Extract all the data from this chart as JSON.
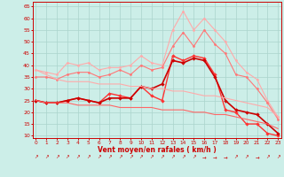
{
  "xlabel": "Vent moyen/en rafales ( km/h )",
  "background_color": "#cceee8",
  "grid_color": "#aad4cc",
  "yticks": [
    10,
    15,
    20,
    25,
    30,
    35,
    40,
    45,
    50,
    55,
    60,
    65
  ],
  "xticks": [
    0,
    1,
    2,
    3,
    4,
    5,
    6,
    7,
    8,
    9,
    10,
    11,
    12,
    13,
    14,
    15,
    16,
    17,
    18,
    19,
    20,
    21,
    22,
    23
  ],
  "ylim": [
    9,
    67
  ],
  "xlim": [
    -0.3,
    23.3
  ],
  "series": [
    {
      "color": "#ffaaaa",
      "linewidth": 0.8,
      "marker": "o",
      "markersize": 2.0,
      "y": [
        38,
        37,
        36,
        41,
        40,
        41,
        38,
        39,
        39,
        40,
        44,
        41,
        40,
        55,
        63,
        55,
        60,
        55,
        50,
        42,
        37,
        34,
        25,
        18
      ]
    },
    {
      "color": "#ff7777",
      "linewidth": 0.8,
      "marker": "o",
      "markersize": 2.0,
      "y": [
        35,
        35,
        34,
        36,
        37,
        37,
        35,
        36,
        38,
        36,
        40,
        38,
        39,
        48,
        54,
        48,
        55,
        49,
        45,
        36,
        35,
        30,
        24,
        17
      ]
    },
    {
      "color": "#ff3333",
      "linewidth": 1.0,
      "marker": "D",
      "markersize": 2.2,
      "y": [
        25,
        24,
        24,
        25,
        26,
        25,
        24,
        28,
        27,
        26,
        31,
        27,
        25,
        44,
        42,
        44,
        43,
        36,
        21,
        20,
        15,
        15,
        11,
        10
      ]
    },
    {
      "color": "#cc0000",
      "linewidth": 1.2,
      "marker": "D",
      "markersize": 2.2,
      "y": [
        25,
        24,
        24,
        25,
        26,
        25,
        24,
        26,
        26,
        26,
        31,
        30,
        32,
        42,
        41,
        43,
        42,
        35,
        25,
        21,
        20,
        19,
        15,
        11
      ]
    },
    {
      "color": "#ffaaaa",
      "linewidth": 0.8,
      "marker": null,
      "y": [
        38,
        36,
        34,
        33,
        33,
        33,
        32,
        32,
        32,
        31,
        31,
        30,
        30,
        29,
        29,
        28,
        27,
        27,
        26,
        25,
        24,
        23,
        22,
        18
      ]
    },
    {
      "color": "#ff6666",
      "linewidth": 0.8,
      "marker": null,
      "y": [
        25,
        24,
        24,
        24,
        23,
        23,
        23,
        23,
        22,
        22,
        22,
        22,
        21,
        21,
        21,
        20,
        20,
        19,
        19,
        18,
        17,
        16,
        15,
        13
      ]
    }
  ]
}
